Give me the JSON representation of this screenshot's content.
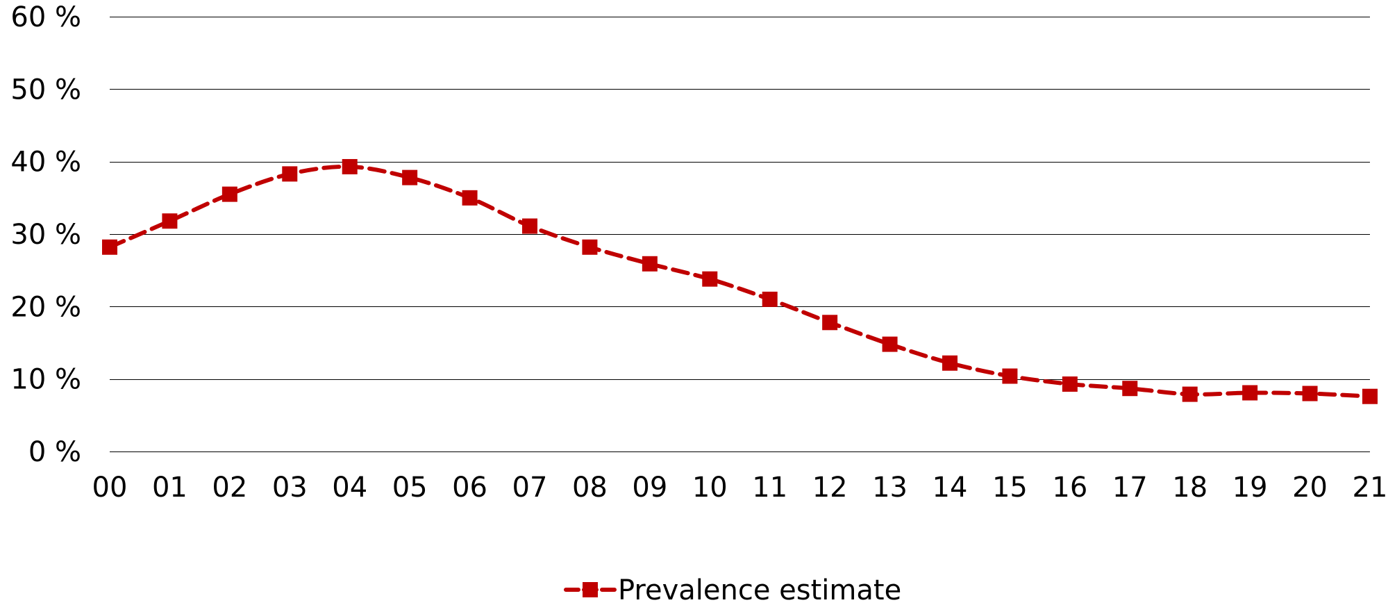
{
  "chart_data": {
    "type": "line",
    "title": "",
    "xlabel": "",
    "ylabel": "",
    "categories": [
      "00",
      "01",
      "02",
      "03",
      "04",
      "05",
      "06",
      "07",
      "08",
      "09",
      "10",
      "11",
      "12",
      "13",
      "14",
      "15",
      "16",
      "17",
      "18",
      "19",
      "20",
      "21"
    ],
    "yticks": [
      "0 %",
      "10 %",
      "20 %",
      "30 %",
      "40 %",
      "50 %",
      "60 %"
    ],
    "ylim": [
      0,
      60
    ],
    "grid": true,
    "legend_position": "bottom",
    "series": [
      {
        "name": "Prevalence estimate",
        "color": "#c00000",
        "line_style": "dashed",
        "marker": "square",
        "values": [
          28.2,
          31.8,
          35.5,
          38.3,
          39.3,
          37.8,
          35.0,
          31.1,
          28.2,
          25.9,
          23.8,
          21.0,
          17.8,
          14.8,
          12.2,
          10.4,
          9.3,
          8.7,
          7.9,
          8.1,
          8.0,
          7.6
        ]
      }
    ]
  }
}
